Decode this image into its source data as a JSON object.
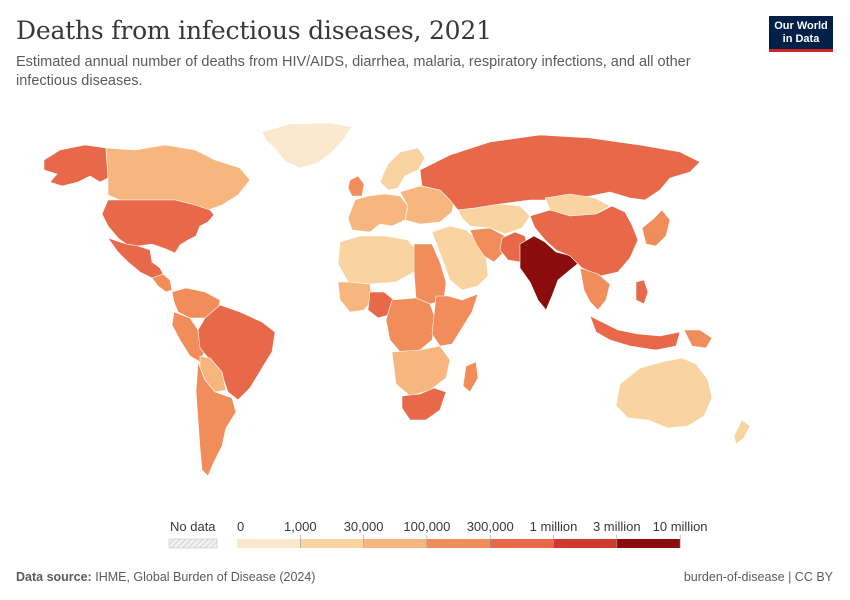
{
  "title": "Deaths from infectious diseases, 2021",
  "subtitle": "Estimated annual number of deaths from HIV/AIDS, diarrhea, malaria, respiratory infections, and all other infectious diseases.",
  "logo": {
    "line1": "Our World",
    "line2": "in Data"
  },
  "legend": {
    "no_data_label": "No data",
    "bins": [
      {
        "label": "0",
        "color": "#fbe9cf"
      },
      {
        "label": "1,000",
        "color": "#f9d3a0"
      },
      {
        "label": "30,000",
        "color": "#f6b67e"
      },
      {
        "label": "100,000",
        "color": "#f08d5a"
      },
      {
        "label": "300,000",
        "color": "#e8684a"
      },
      {
        "label": "1 million",
        "color": "#ce3a2f"
      },
      {
        "label": "3 million",
        "color": "#8a0c0c"
      },
      {
        "label": "10 million",
        "color": ""
      }
    ]
  },
  "footer": {
    "source_prefix": "Data source:",
    "source_text": "IHME, Global Burden of Disease (2024)",
    "right_text": "burden-of-disease | CC BY"
  },
  "map_regions": [
    {
      "name": "greenland",
      "color": "#fbe9cf"
    },
    {
      "name": "alaska",
      "color": "#e8684a"
    },
    {
      "name": "canada",
      "color": "#f6b67e"
    },
    {
      "name": "usa",
      "color": "#e8684a"
    },
    {
      "name": "mexico",
      "color": "#e8684a"
    },
    {
      "name": "central-america",
      "color": "#f08d5a"
    },
    {
      "name": "colombia-venezuela",
      "color": "#f08d5a"
    },
    {
      "name": "peru-ecuador",
      "color": "#f08d5a"
    },
    {
      "name": "brazil",
      "color": "#e8684a"
    },
    {
      "name": "bolivia-paraguay",
      "color": "#f6b67e"
    },
    {
      "name": "argentina-chile",
      "color": "#f08d5a"
    },
    {
      "name": "western-europe",
      "color": "#f6b67e"
    },
    {
      "name": "uk",
      "color": "#f08d5a"
    },
    {
      "name": "scandinavia",
      "color": "#f9d3a0"
    },
    {
      "name": "eastern-europe",
      "color": "#f6b67e"
    },
    {
      "name": "russia",
      "color": "#e8684a"
    },
    {
      "name": "north-africa",
      "color": "#f9d3a0"
    },
    {
      "name": "west-africa",
      "color": "#f6b67e"
    },
    {
      "name": "nigeria",
      "color": "#e8684a"
    },
    {
      "name": "egypt-sudan",
      "color": "#f08d5a"
    },
    {
      "name": "central-africa",
      "color": "#f08d5a"
    },
    {
      "name": "east-africa",
      "color": "#f08d5a"
    },
    {
      "name": "southern-africa",
      "color": "#f6b67e"
    },
    {
      "name": "south-africa",
      "color": "#e8684a"
    },
    {
      "name": "madagascar",
      "color": "#f08d5a"
    },
    {
      "name": "middle-east",
      "color": "#f9d3a0"
    },
    {
      "name": "iran",
      "color": "#f08d5a"
    },
    {
      "name": "central-asia",
      "color": "#f9d3a0"
    },
    {
      "name": "pakistan-afghanistan",
      "color": "#e8684a"
    },
    {
      "name": "india",
      "color": "#8a0c0c"
    },
    {
      "name": "china",
      "color": "#e8684a"
    },
    {
      "name": "mongolia",
      "color": "#f9d3a0"
    },
    {
      "name": "japan-korea",
      "color": "#f08d5a"
    },
    {
      "name": "southeast-asia",
      "color": "#f08d5a"
    },
    {
      "name": "philippines",
      "color": "#e8684a"
    },
    {
      "name": "indonesia",
      "color": "#e8684a"
    },
    {
      "name": "australia",
      "color": "#f9d3a0"
    },
    {
      "name": "new-zealand",
      "color": "#f9d3a0"
    },
    {
      "name": "papua-new-guinea",
      "color": "#f08d5a"
    }
  ]
}
